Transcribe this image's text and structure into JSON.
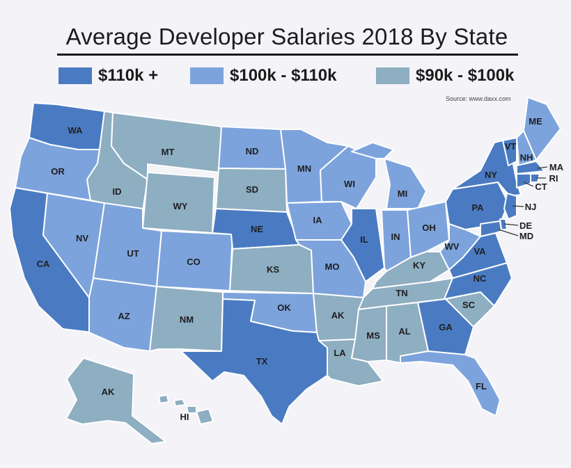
{
  "title": "Average Developer Salaries 2018 By State",
  "source": "Source: www.daxx.com",
  "colors": {
    "high": "#4a7bc2",
    "mid": "#7da3dc",
    "low": "#8eaec1",
    "border": "#ffffff"
  },
  "legend": [
    {
      "label": "$110k +",
      "color": "#4a7bc2"
    },
    {
      "label": "$100k - $110k",
      "color": "#7da3dc"
    },
    {
      "label": "$90k - $100k",
      "color": "#8eaec1"
    }
  ],
  "states": {
    "WA": "$110k +",
    "OR": "$100k - $110k",
    "CA": "$110k +",
    "NV": "$100k - $110k",
    "ID": "$90k - $100k",
    "MT": "$90k - $100k",
    "WY": "$90k - $100k",
    "UT": "$100k - $110k",
    "AZ": "$100k - $110k",
    "CO": "$100k - $110k",
    "NM": "$90k - $100k",
    "ND": "$100k - $110k",
    "SD": "$90k - $100k",
    "NE": "$110k +",
    "KS": "$90k - $100k",
    "OK": "$100k - $110k",
    "TX": "$110k +",
    "MN": "$100k - $110k",
    "IA": "$100k - $110k",
    "MO": "$100k - $110k",
    "AR": "$90k - $100k",
    "LA": "$90k - $100k",
    "WI": "$100k - $110k",
    "IL": "$110k +",
    "MI": "$100k - $110k",
    "IN": "$100k - $110k",
    "OH": "$100k - $110k",
    "KY": "$90k - $100k",
    "TN": "$90k - $100k",
    "MS": "$90k - $100k",
    "AL": "$90k - $100k",
    "GA": "$110k +",
    "FL": "$100k - $110k",
    "SC": "$90k - $100k",
    "NC": "$110k +",
    "VA": "$110k +",
    "WV": "$100k - $110k",
    "PA": "$110k +",
    "NY": "$110k +",
    "VT": "$110k +",
    "NH": "$100k - $110k",
    "ME": "$100k - $110k",
    "MA": "$110k +",
    "RI": "$110k +",
    "CT": "$110k +",
    "NJ": "$110k +",
    "DE": "$110k +",
    "MD": "$110k +",
    "AK": "$90k - $100k",
    "HI": "$90k - $100k"
  }
}
